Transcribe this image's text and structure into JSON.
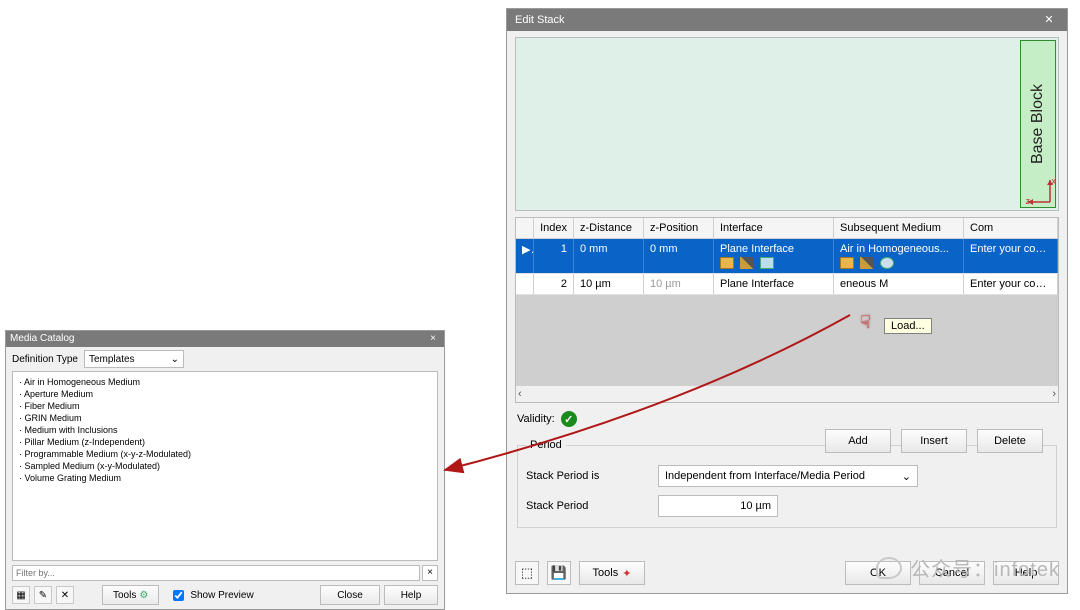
{
  "media_catalog": {
    "title": "Media Catalog",
    "def_type_label": "Definition Type",
    "def_type_value": "Templates",
    "items": [
      "Air in Homogeneous Medium",
      "Aperture Medium",
      "Fiber Medium",
      "GRIN Medium",
      "Medium with Inclusions",
      "Pillar Medium (z-Independent)",
      "Programmable Medium (x-y-z-Modulated)",
      "Sampled Medium (x-y-Modulated)",
      "Volume Grating Medium"
    ],
    "filter_placeholder": "Filter by...",
    "tools_label": "Tools",
    "show_preview_label": "Show Preview",
    "close_label": "Close",
    "help_label": "Help"
  },
  "edit_stack": {
    "title": "Edit Stack",
    "base_block_label": "Base Block",
    "axis": {
      "z": "z",
      "x": "x"
    },
    "columns": [
      "",
      "Index",
      "z-Distance",
      "z-Position",
      "Interface",
      "Subsequent Medium",
      "Com"
    ],
    "rows": [
      {
        "idx": "1",
        "zdist": "0 mm",
        "zpos": "0 mm",
        "interface": "Plane Interface",
        "medium": "Air in Homogeneous...",
        "comment": "Enter your commen",
        "selected": true,
        "show_icons": true
      },
      {
        "idx": "2",
        "zdist": "10 µm",
        "zpos": "10 µm",
        "interface": "Plane Interface",
        "medium": "eneous M",
        "comment": "Enter your commen",
        "selected": false,
        "show_icons": false
      }
    ],
    "tooltip": "Load...",
    "validity_label": "Validity:",
    "add_label": "Add",
    "insert_label": "Insert",
    "delete_label": "Delete",
    "period": {
      "legend": "Period",
      "stack_period_is_label": "Stack Period is",
      "stack_period_is_value": "Independent from Interface/Media Period",
      "stack_period_label": "Stack Period",
      "stack_period_value": "10 µm"
    },
    "tools_label": "Tools",
    "ok_label": "OK",
    "cancel_label": "Cancel",
    "help_label": "Help"
  },
  "watermark": "公众号：infotek",
  "colors": {
    "titlebar": "#7a7a7a",
    "selection": "#0a64c8",
    "preview_bg": "#dff0e8",
    "baseblock_bg": "#c6eec6",
    "arrow": "#b01818"
  }
}
